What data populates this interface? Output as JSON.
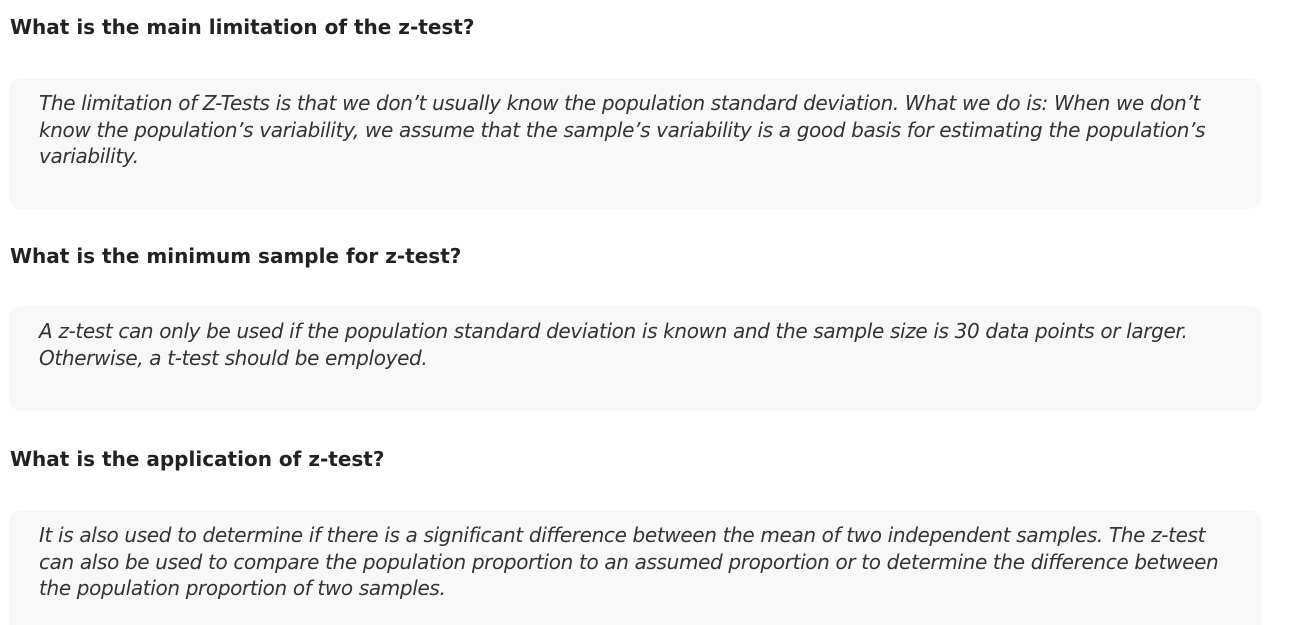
{
  "faqs": [
    {
      "question": "What is the main limitation of the z-test?",
      "answer": "The limitation of Z-Tests is that we don’t usually know the population standard deviation. What we do is: When we don’t know the population’s variability, we assume that the sample’s variability is a good basis for estimating the population’s variability."
    },
    {
      "question": "What is the minimum sample for z-test?",
      "answer": "A z-test can only be used if the population standard deviation is known and the sample size is 30 data points or larger. Otherwise, a t-test should be employed."
    },
    {
      "question": "What is the application of z-test?",
      "answer": "It is also used to determine if there is a significant difference between the mean of two independent samples. The z-test can also be used to compare the population proportion to an assumed proportion or to determine the difference between the population proportion of two samples."
    }
  ]
}
